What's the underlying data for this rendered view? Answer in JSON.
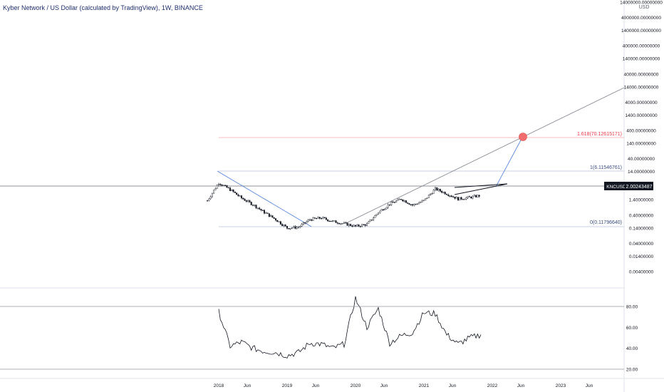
{
  "header": {
    "title": "Kyber Network / US Dollar (calculated by TradingView), 1W, BINANCE"
  },
  "colors": {
    "price_line": "#131722",
    "fib_line": "#b2b5be",
    "fib_target": "#f23645",
    "trend_blue": "#4d7fd8",
    "tag_bg": "#131722",
    "rsi_line": "#131722",
    "target_dot": "#f16d6d"
  },
  "price_axis": {
    "currency": "USD",
    "labels": [
      "14000000.00000000",
      "4000000.00000000",
      "1400000.00000000",
      "400000.00000000",
      "140000.00000000",
      "40000.00000000",
      "14000.00000000",
      "4000.00000000",
      "1400.00000000",
      "400.00000000",
      "140.00000000",
      "40.00000000",
      "14.00000000",
      "4.00000000",
      "1.40000000",
      "0.40000000",
      "0.14000000",
      "0.04000000",
      "0.01400000",
      "0.00400000"
    ],
    "current_price": "2.00243487",
    "ticker_tag": "KNCUSD"
  },
  "rsi_axis": {
    "labels": [
      "80.00",
      "60.00",
      "40.00",
      "20.00"
    ]
  },
  "time_axis": {
    "labels": [
      "2018",
      "Jun",
      "2019",
      "Jun",
      "2020",
      "Jun",
      "2021",
      "Jun",
      "2022",
      "Jun",
      "2023",
      "Jun"
    ]
  },
  "fib_levels": {
    "level_1618": "1.618(70.12615171)",
    "level_1": "1(6.11546761)",
    "level_0": "0(0.11796640)"
  },
  "chart_data": [
    {
      "type": "line",
      "series_type": "candlestick",
      "y_scale": "log",
      "x": [
        "2017-11",
        "2018-01",
        "2018-03",
        "2018-05",
        "2018-07",
        "2018-09",
        "2018-11",
        "2019-01",
        "2019-03",
        "2019-05",
        "2019-07",
        "2019-09",
        "2019-11",
        "2020-01",
        "2020-03",
        "2020-05",
        "2020-07",
        "2020-09",
        "2020-11",
        "2021-01",
        "2021-03",
        "2021-05",
        "2021-07",
        "2021-09",
        "2021-11"
      ],
      "values": [
        1.3,
        5.6,
        3.2,
        1.6,
        0.95,
        0.5,
        0.28,
        0.14,
        0.15,
        0.28,
        0.32,
        0.24,
        0.2,
        0.16,
        0.19,
        0.5,
        1.0,
        1.5,
        0.9,
        1.3,
        3.4,
        2.3,
        1.5,
        1.7,
        2.0
      ],
      "ylim": [
        0.004,
        14000000
      ]
    },
    {
      "type": "line",
      "name": "RSI",
      "x": [
        "2018-01",
        "2018-03",
        "2018-05",
        "2018-07",
        "2018-09",
        "2018-11",
        "2019-01",
        "2019-03",
        "2019-05",
        "2019-07",
        "2019-09",
        "2019-11",
        "2020-01",
        "2020-03",
        "2020-05",
        "2020-07",
        "2020-09",
        "2020-11",
        "2021-01",
        "2021-03",
        "2021-05",
        "2021-07",
        "2021-09",
        "2021-11"
      ],
      "values": [
        75,
        42,
        46,
        40,
        37,
        36,
        33,
        36,
        45,
        44,
        40,
        44,
        88,
        60,
        78,
        45,
        52,
        55,
        74,
        73,
        53,
        44,
        50,
        53
      ],
      "ylim": [
        17,
        95
      ],
      "levels": [
        80,
        20
      ]
    }
  ]
}
